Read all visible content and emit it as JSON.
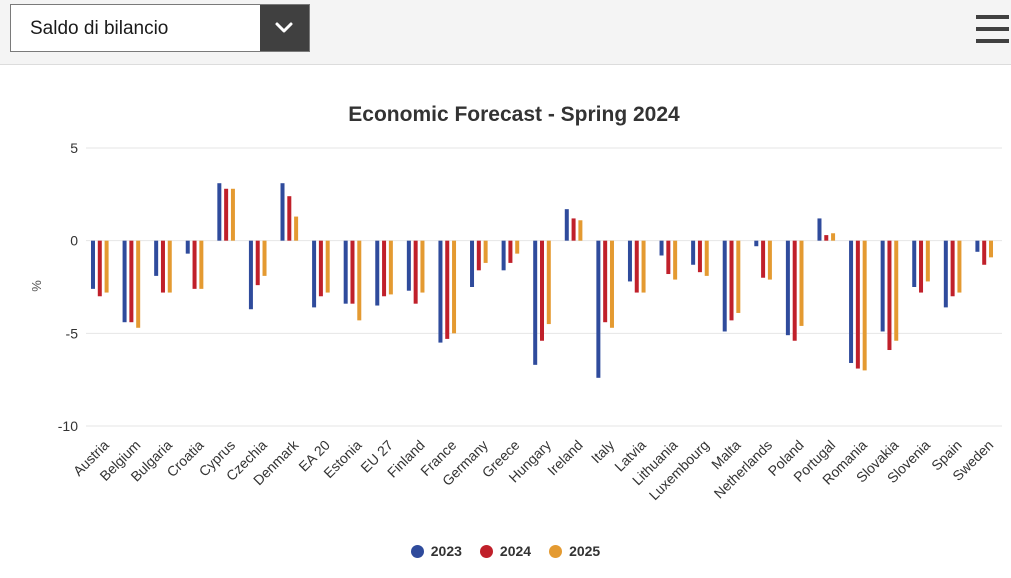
{
  "header": {
    "select_value": "Saldo di bilancio",
    "dropdown_icon": "chevron-down-icon",
    "menu_icon": "hamburger-menu-icon"
  },
  "chart_data": {
    "type": "bar",
    "title": "Economic Forecast - Spring 2024",
    "xlabel": "",
    "ylabel": "%",
    "ylim": [
      -10,
      5
    ],
    "yticks": [
      5,
      0,
      -5,
      -10
    ],
    "grid": true,
    "legend_position": "bottom",
    "categories": [
      "Austria",
      "Belgium",
      "Bulgaria",
      "Croatia",
      "Cyprus",
      "Czechia",
      "Denmark",
      "EA 20",
      "Estonia",
      "EU 27",
      "Finland",
      "France",
      "Germany",
      "Greece",
      "Hungary",
      "Ireland",
      "Italy",
      "Latvia",
      "Lithuania",
      "Luxembourg",
      "Malta",
      "Netherlands",
      "Poland",
      "Portugal",
      "Romania",
      "Slovakia",
      "Slovenia",
      "Spain",
      "Sweden"
    ],
    "series": [
      {
        "name": "2023",
        "color": "#2f4b9c",
        "values": [
          -2.6,
          -4.4,
          -1.9,
          -0.7,
          3.1,
          -3.7,
          3.1,
          -3.6,
          -3.4,
          -3.5,
          -2.7,
          -5.5,
          -2.5,
          -1.6,
          -6.7,
          1.7,
          -7.4,
          -2.2,
          -0.8,
          -1.3,
          -4.9,
          -0.3,
          -5.1,
          1.2,
          -6.6,
          -4.9,
          -2.5,
          -3.6,
          -0.6
        ]
      },
      {
        "name": "2024",
        "color": "#c0202a",
        "values": [
          -3.0,
          -4.4,
          -2.8,
          -2.6,
          2.8,
          -2.4,
          2.4,
          -3.0,
          -3.4,
          -3.0,
          -3.4,
          -5.3,
          -1.6,
          -1.2,
          -5.4,
          1.2,
          -4.4,
          -2.8,
          -1.8,
          -1.7,
          -4.3,
          -2.0,
          -5.4,
          0.3,
          -6.9,
          -5.9,
          -2.8,
          -3.0,
          -1.3
        ]
      },
      {
        "name": "2025",
        "color": "#e49a31",
        "values": [
          -2.8,
          -4.7,
          -2.8,
          -2.6,
          2.8,
          -1.9,
          1.3,
          -2.8,
          -4.3,
          -2.9,
          -2.8,
          -5.0,
          -1.2,
          -0.7,
          -4.5,
          1.1,
          -4.7,
          -2.8,
          -2.1,
          -1.9,
          -3.9,
          -2.1,
          -4.6,
          0.4,
          -7.0,
          -5.4,
          -2.2,
          -2.8,
          -0.9
        ]
      }
    ]
  }
}
